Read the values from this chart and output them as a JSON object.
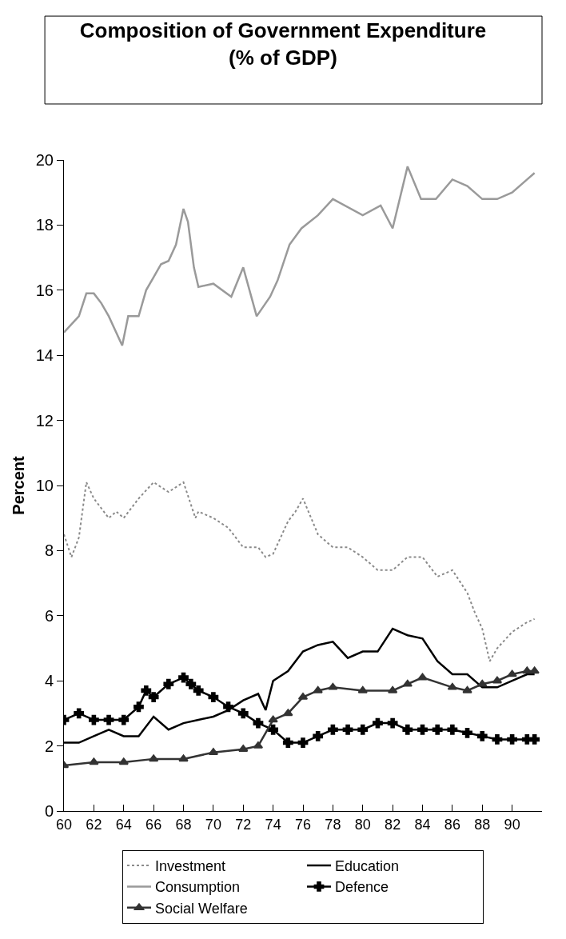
{
  "chart_data": {
    "type": "line",
    "title": "Composition of Government Expenditure\n(% of GDP)",
    "ylabel": "Percent",
    "xlim": [
      60,
      92
    ],
    "xticks": [
      60,
      62,
      64,
      66,
      68,
      70,
      72,
      74,
      76,
      78,
      80,
      82,
      84,
      86,
      88,
      90
    ],
    "ylim": [
      0,
      20
    ],
    "yticks": [
      0,
      2,
      4,
      6,
      8,
      10,
      12,
      14,
      16,
      18,
      20
    ],
    "grid": false,
    "legend": "bottom",
    "series": [
      {
        "name": "Investment",
        "color": "#8a8a8a",
        "line_style": "dotted",
        "marker": "none",
        "x": [
          60,
          60.5,
          61,
          61.5,
          62,
          63,
          63.5,
          64,
          65,
          66,
          67,
          68,
          68.8,
          69,
          70,
          71,
          72,
          73,
          73.5,
          74,
          74.5,
          75,
          75.5,
          76,
          77,
          78,
          79,
          80,
          81,
          82,
          83,
          84,
          85,
          86,
          87,
          87.5,
          88,
          88.5,
          89,
          90,
          91,
          91.5
        ],
        "values": [
          8.5,
          7.8,
          8.4,
          10.1,
          9.6,
          9.0,
          9.2,
          9.0,
          9.6,
          10.1,
          9.8,
          10.1,
          9.0,
          9.2,
          9.0,
          8.7,
          8.1,
          8.1,
          7.8,
          7.9,
          8.4,
          8.9,
          9.2,
          9.6,
          8.5,
          8.1,
          8.1,
          7.8,
          7.4,
          7.4,
          7.8,
          7.8,
          7.2,
          7.4,
          6.7,
          6.1,
          5.6,
          4.6,
          5.0,
          5.5,
          5.8,
          5.9
        ]
      },
      {
        "name": "Education",
        "color": "#000000",
        "line_style": "solid",
        "marker": "none",
        "x": [
          60,
          61,
          62,
          63,
          64,
          65,
          66,
          67,
          68,
          69,
          70,
          71,
          72,
          73,
          73.5,
          74,
          75,
          76,
          77,
          78,
          79,
          80,
          81,
          82,
          83,
          84,
          85,
          86,
          87,
          88,
          89,
          90,
          91,
          91.5
        ],
        "values": [
          2.1,
          2.1,
          2.3,
          2.5,
          2.3,
          2.3,
          2.9,
          2.5,
          2.7,
          2.8,
          2.9,
          3.1,
          3.4,
          3.6,
          3.1,
          4.0,
          4.3,
          4.9,
          5.1,
          5.2,
          4.7,
          4.9,
          4.9,
          5.6,
          5.4,
          5.3,
          4.6,
          4.2,
          4.2,
          3.8,
          3.8,
          4.0,
          4.2,
          4.2
        ]
      },
      {
        "name": "Consumption",
        "color": "#9a9a9a",
        "line_style": "solid",
        "marker": "none",
        "x": [
          60,
          61,
          61.5,
          62,
          62.5,
          63,
          63.9,
          64.3,
          65,
          65.5,
          66,
          66.5,
          67,
          67.5,
          68,
          68.3,
          68.7,
          69,
          70,
          71.2,
          72,
          72.9,
          73.8,
          74.3,
          75.1,
          75.9,
          77,
          78,
          80,
          81.2,
          82,
          83,
          83.9,
          84.9,
          86,
          87,
          88,
          89,
          90,
          91,
          91.5
        ],
        "values": [
          14.7,
          15.2,
          15.9,
          15.9,
          15.6,
          15.2,
          14.3,
          15.2,
          15.2,
          16.0,
          16.4,
          16.8,
          16.9,
          17.4,
          18.5,
          18.1,
          16.7,
          16.1,
          16.2,
          15.8,
          16.7,
          15.2,
          15.8,
          16.3,
          17.4,
          17.9,
          18.3,
          18.8,
          18.3,
          18.6,
          17.9,
          19.8,
          18.8,
          18.8,
          19.4,
          19.2,
          18.8,
          18.8,
          19.0,
          19.4,
          19.6
        ]
      },
      {
        "name": "Defence",
        "color": "#000000",
        "line_style": "solid",
        "marker": "cross",
        "x": [
          60,
          61,
          62,
          63,
          64,
          65,
          65.5,
          66,
          67,
          68,
          68.5,
          69,
          70,
          71,
          72,
          73,
          74,
          75,
          76,
          77,
          78,
          79,
          80,
          81,
          82,
          83,
          84,
          85,
          86,
          87,
          88,
          89,
          90,
          91,
          91.5
        ],
        "values": [
          2.8,
          3.0,
          2.8,
          2.8,
          2.8,
          3.2,
          3.7,
          3.5,
          3.9,
          4.1,
          3.9,
          3.7,
          3.5,
          3.2,
          3.0,
          2.7,
          2.5,
          2.1,
          2.1,
          2.3,
          2.5,
          2.5,
          2.5,
          2.7,
          2.7,
          2.5,
          2.5,
          2.5,
          2.5,
          2.4,
          2.3,
          2.2,
          2.2,
          2.2,
          2.2
        ]
      },
      {
        "name": "Social Welfare",
        "color": "#333333",
        "line_style": "solid",
        "marker": "triangle",
        "x": [
          60,
          62,
          64,
          66,
          68,
          70,
          72,
          73,
          74,
          75,
          76,
          77,
          78,
          80,
          82,
          83,
          84,
          86,
          87,
          88,
          89,
          90,
          91,
          91.5
        ],
        "values": [
          1.4,
          1.5,
          1.5,
          1.6,
          1.6,
          1.8,
          1.9,
          2.0,
          2.8,
          3.0,
          3.5,
          3.7,
          3.8,
          3.7,
          3.7,
          3.9,
          4.1,
          3.8,
          3.7,
          3.9,
          4.0,
          4.2,
          4.3,
          4.3
        ]
      }
    ]
  }
}
